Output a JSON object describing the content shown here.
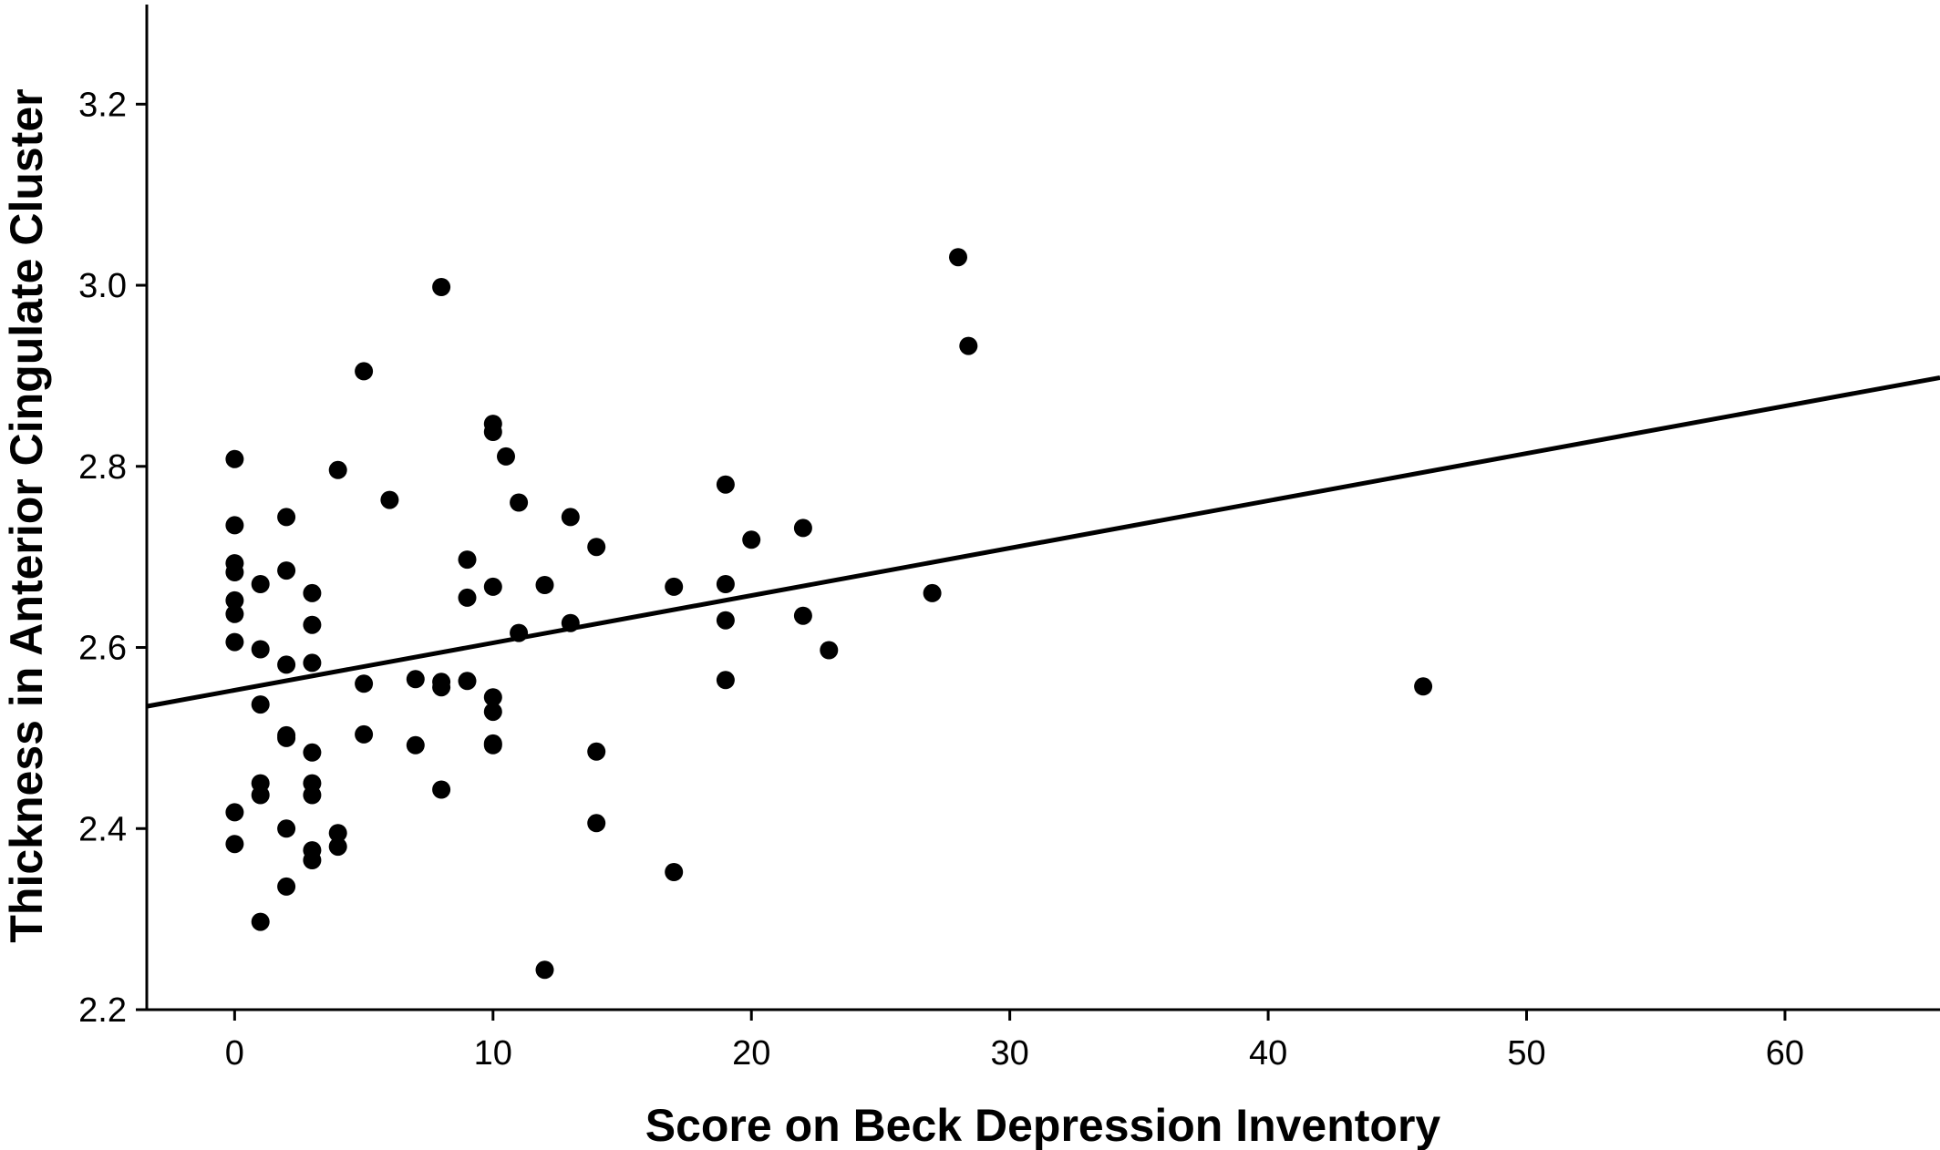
{
  "chart_data": {
    "type": "scatter",
    "title": "",
    "xlabel": "Score on Beck Depression Inventory",
    "ylabel": "Thickness in Anterior Cingulate Cluster",
    "xlim": [
      -3.4,
      66
    ],
    "ylim": [
      2.2,
      3.31
    ],
    "x_ticks": [
      0,
      10,
      20,
      30,
      40,
      50,
      60
    ],
    "y_ticks": [
      2.2,
      2.4,
      2.6,
      2.8,
      3.0,
      3.2
    ],
    "x_tick_labels": [
      "0",
      "10",
      "20",
      "30",
      "40",
      "50",
      "60"
    ],
    "y_tick_labels": [
      "2.2",
      "2.4",
      "2.6",
      "2.8",
      "3.0",
      "3.2"
    ],
    "grid": false,
    "fit_line": {
      "x": [
        -3.4,
        66
      ],
      "y": [
        2.535,
        2.898
      ]
    },
    "points": [
      [
        0,
        2.808
      ],
      [
        0,
        2.735
      ],
      [
        0,
        2.693
      ],
      [
        0,
        2.683
      ],
      [
        0,
        2.652
      ],
      [
        0,
        2.637
      ],
      [
        0,
        2.606
      ],
      [
        0,
        2.418
      ],
      [
        0,
        2.383
      ],
      [
        1,
        2.67
      ],
      [
        1,
        2.598
      ],
      [
        1,
        2.537
      ],
      [
        1,
        2.45
      ],
      [
        1,
        2.437
      ],
      [
        1,
        2.297
      ],
      [
        2,
        2.744
      ],
      [
        2,
        2.685
      ],
      [
        2,
        2.581
      ],
      [
        2,
        2.503
      ],
      [
        2,
        2.5
      ],
      [
        2,
        2.4
      ],
      [
        2,
        2.336
      ],
      [
        3,
        2.66
      ],
      [
        3,
        2.625
      ],
      [
        3,
        2.583
      ],
      [
        3,
        2.484
      ],
      [
        3,
        2.45
      ],
      [
        3,
        2.437
      ],
      [
        3,
        2.376
      ],
      [
        3,
        2.365
      ],
      [
        4,
        2.796
      ],
      [
        4,
        2.395
      ],
      [
        4,
        2.38
      ],
      [
        5,
        2.905
      ],
      [
        5,
        2.56
      ],
      [
        5,
        2.504
      ],
      [
        6,
        2.763
      ],
      [
        7,
        2.565
      ],
      [
        7,
        2.492
      ],
      [
        8,
        2.998
      ],
      [
        8,
        2.562
      ],
      [
        8,
        2.556
      ],
      [
        8,
        2.443
      ],
      [
        9,
        2.697
      ],
      [
        9,
        2.655
      ],
      [
        9,
        2.563
      ],
      [
        10,
        2.847
      ],
      [
        10,
        2.838
      ],
      [
        10,
        2.667
      ],
      [
        10,
        2.545
      ],
      [
        10,
        2.529
      ],
      [
        10,
        2.494
      ],
      [
        10,
        2.492
      ],
      [
        10.5,
        2.811
      ],
      [
        11,
        2.76
      ],
      [
        11,
        2.616
      ],
      [
        12,
        2.669
      ],
      [
        12,
        2.244
      ],
      [
        13,
        2.744
      ],
      [
        13,
        2.627
      ],
      [
        14,
        2.711
      ],
      [
        14,
        2.485
      ],
      [
        14,
        2.406
      ],
      [
        17,
        2.667
      ],
      [
        17,
        2.352
      ],
      [
        19,
        2.78
      ],
      [
        19,
        2.67
      ],
      [
        19,
        2.63
      ],
      [
        19,
        2.564
      ],
      [
        20,
        2.719
      ],
      [
        22,
        2.732
      ],
      [
        22,
        2.635
      ],
      [
        23,
        2.597
      ],
      [
        27,
        2.66
      ],
      [
        28,
        3.031
      ],
      [
        28.4,
        2.933
      ],
      [
        46,
        2.557
      ]
    ]
  }
}
